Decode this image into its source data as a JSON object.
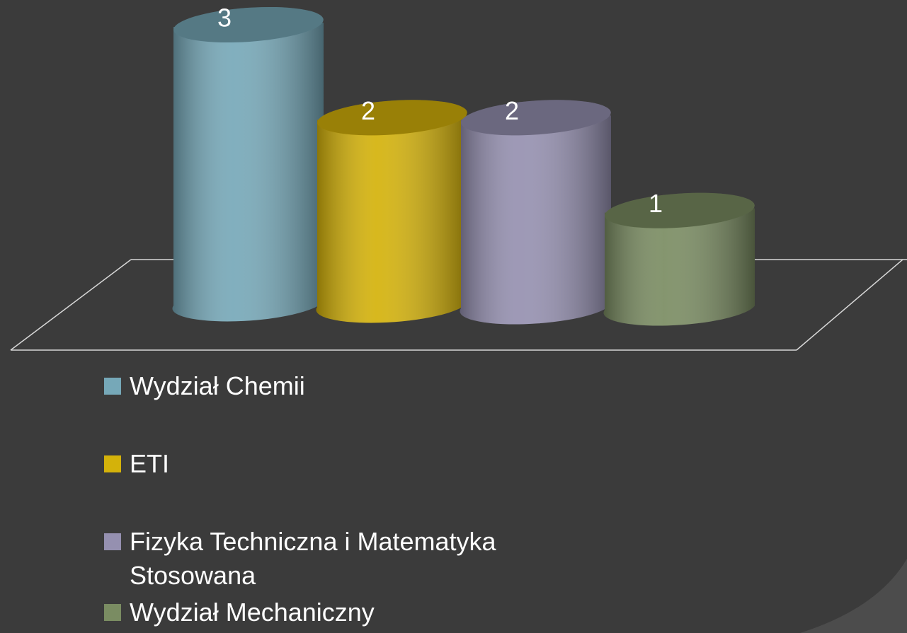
{
  "chart_data": {
    "type": "cylinder",
    "series": [
      {
        "name": "Wydział Chemii",
        "color": "#76a8b8",
        "values": [
          3
        ]
      },
      {
        "name": "ETI",
        "color": "#d4b20a",
        "values": [
          2
        ]
      },
      {
        "name": "Fizyka Techniczna i Matematyka Stosowana",
        "color": "#9590b0",
        "values": [
          2
        ]
      },
      {
        "name": "Wydział Mechaniczny",
        "color": "#7a8c62",
        "values": [
          1
        ]
      }
    ],
    "ylim": [
      0,
      3
    ]
  }
}
